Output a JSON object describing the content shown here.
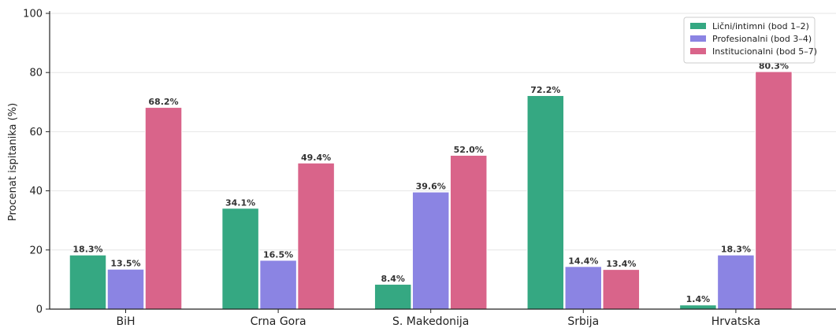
{
  "chart_data": {
    "type": "bar",
    "categories": [
      "BiH",
      "Crna Gora",
      "S. Makedonija",
      "Srbija",
      "Hrvatska"
    ],
    "series": [
      {
        "name": "Lični/intimni (bod 1–2)",
        "color": "#35a882",
        "values": [
          18.3,
          34.1,
          8.4,
          72.2,
          1.4
        ],
        "labels": [
          "18.3%",
          "34.1%",
          "8.4%",
          "72.2%",
          "1.4%"
        ]
      },
      {
        "name": "Profesionalni (bod 3–4)",
        "color": "#8b84e3",
        "values": [
          13.5,
          16.5,
          39.6,
          14.4,
          18.3
        ],
        "labels": [
          "13.5%",
          "16.5%",
          "39.6%",
          "14.4%",
          "18.3%"
        ]
      },
      {
        "name": "Institucionalni (bod 5–7)",
        "color": "#d9648a",
        "values": [
          68.2,
          49.4,
          52.0,
          13.4,
          80.3
        ],
        "labels": [
          "68.2%",
          "49.4%",
          "52.0%",
          "13.4%",
          "80.3%"
        ]
      }
    ],
    "ylabel": "Procenat ispitanika (%)",
    "ylim": [
      0,
      100
    ],
    "yticks": [
      "0",
      "20",
      "40",
      "60",
      "80",
      "100"
    ],
    "grid": "horizontal",
    "legend_position": "top-right"
  }
}
